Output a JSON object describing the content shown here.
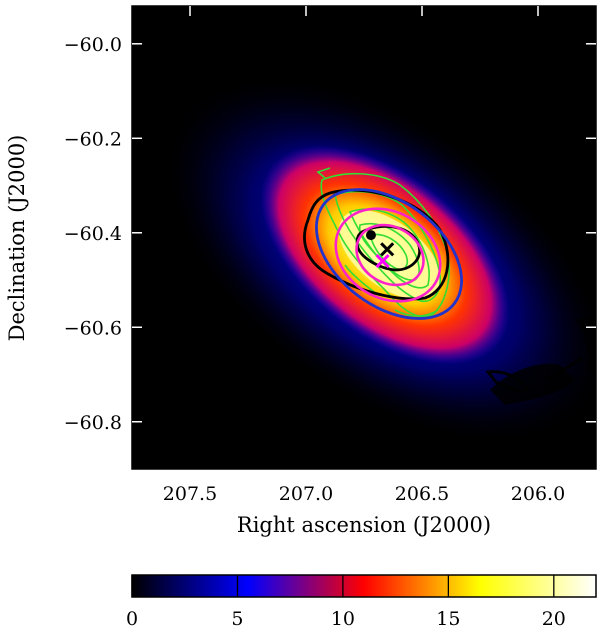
{
  "chart_data": {
    "type": "heatmap",
    "xlabel": "Right ascension (J2000)",
    "ylabel": "Declination (J2000)",
    "xlim": [
      207.75,
      205.75
    ],
    "ylim": [
      -60.9,
      -59.92
    ],
    "xticks": [
      207.5,
      207.0,
      206.5,
      206.0
    ],
    "xtick_labels": [
      "207.5",
      "207.0",
      "206.5",
      "206.0"
    ],
    "yticks": [
      -60.0,
      -60.2,
      -60.4,
      -60.6,
      -60.8
    ],
    "ytick_labels": [
      "−60.0",
      "−60.2",
      "−60.4",
      "−60.6",
      "−60.8"
    ],
    "colorbar": {
      "range": [
        0,
        22
      ],
      "ticks": [
        0,
        5,
        10,
        15,
        20
      ],
      "tick_labels": [
        "0",
        "5",
        "10",
        "15",
        "20"
      ],
      "colormap": [
        "#000000",
        "#0000ff",
        "#ff0000",
        "#ffff00",
        "#ffffff"
      ]
    },
    "markers": [
      {
        "name": "black-cross",
        "ra": 206.65,
        "dec": -60.435,
        "color": "#000000"
      },
      {
        "name": "magenta-cross",
        "ra": 206.67,
        "dec": -60.46,
        "color": "#ff00ff"
      },
      {
        "name": "black-dot",
        "ra": 206.72,
        "dec": -60.405,
        "color": "#000000"
      }
    ],
    "contour_colors": {
      "green": "#33dd33",
      "black": "#000000",
      "blue": "#2233cc",
      "magenta": "#ff22cc"
    }
  }
}
